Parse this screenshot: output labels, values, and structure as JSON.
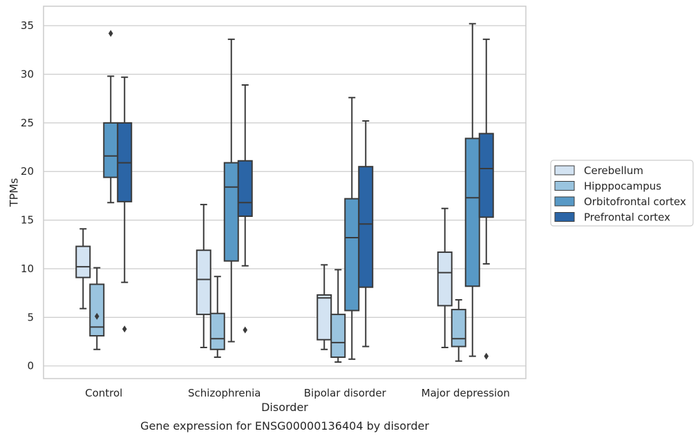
{
  "chart_data": {
    "type": "boxplot",
    "xlabel": "Disorder",
    "ylabel": "TPMs",
    "caption": "Gene expression for ENSG00000136404 by disorder",
    "ylim": [
      -1.3,
      37
    ],
    "yticks": [
      0,
      5,
      10,
      15,
      20,
      25,
      30,
      35
    ],
    "grid": true,
    "legend_position": "right",
    "categories": [
      "Control",
      "Schizophrenia",
      "Bipolar disorder",
      "Major depression"
    ],
    "series": [
      {
        "name": "Cerebellum",
        "color": "#d3e3f2",
        "boxes": [
          {
            "whisker_low": 5.9,
            "q1": 9.1,
            "median": 10.2,
            "q3": 12.3,
            "whisker_high": 14.1,
            "outliers": []
          },
          {
            "whisker_low": 1.9,
            "q1": 5.3,
            "median": 8.9,
            "q3": 11.9,
            "whisker_high": 16.6,
            "outliers": []
          },
          {
            "whisker_low": 1.7,
            "q1": 2.7,
            "median": 7.0,
            "q3": 7.3,
            "whisker_high": 10.4,
            "outliers": []
          },
          {
            "whisker_low": 1.9,
            "q1": 6.2,
            "median": 9.6,
            "q3": 11.7,
            "whisker_high": 16.2,
            "outliers": []
          }
        ]
      },
      {
        "name": "Hipppocampus",
        "color": "#9ac4df",
        "boxes": [
          {
            "whisker_low": 1.7,
            "q1": 3.1,
            "median": 4.0,
            "q3": 8.4,
            "whisker_high": 10.1,
            "outliers": [
              5.1
            ]
          },
          {
            "whisker_low": 0.9,
            "q1": 1.7,
            "median": 2.8,
            "q3": 5.4,
            "whisker_high": 9.2,
            "outliers": []
          },
          {
            "whisker_low": 0.4,
            "q1": 0.9,
            "median": 2.4,
            "q3": 5.3,
            "whisker_high": 9.9,
            "outliers": []
          },
          {
            "whisker_low": 0.5,
            "q1": 2.0,
            "median": 2.8,
            "q3": 5.8,
            "whisker_high": 6.8,
            "outliers": []
          }
        ]
      },
      {
        "name": "Orbitofrontal cortex",
        "color": "#5899c6",
        "boxes": [
          {
            "whisker_low": 16.8,
            "q1": 19.4,
            "median": 21.6,
            "q3": 25.0,
            "whisker_high": 29.8,
            "outliers": [
              34.2
            ]
          },
          {
            "whisker_low": 2.5,
            "q1": 10.8,
            "median": 18.4,
            "q3": 20.9,
            "whisker_high": 33.6,
            "outliers": []
          },
          {
            "whisker_low": 0.7,
            "q1": 5.7,
            "median": 13.2,
            "q3": 17.2,
            "whisker_high": 27.6,
            "outliers": []
          },
          {
            "whisker_low": 1.0,
            "q1": 8.2,
            "median": 17.3,
            "q3": 23.4,
            "whisker_high": 35.2,
            "outliers": []
          }
        ]
      },
      {
        "name": "Prefrontal cortex",
        "color": "#2b65a6",
        "boxes": [
          {
            "whisker_low": 8.6,
            "q1": 16.9,
            "median": 20.9,
            "q3": 25.0,
            "whisker_high": 29.7,
            "outliers": [
              3.8
            ]
          },
          {
            "whisker_low": 10.3,
            "q1": 15.4,
            "median": 16.8,
            "q3": 21.1,
            "whisker_high": 28.9,
            "outliers": [
              3.7
            ]
          },
          {
            "whisker_low": 2.0,
            "q1": 8.1,
            "median": 14.6,
            "q3": 20.5,
            "whisker_high": 25.2,
            "outliers": []
          },
          {
            "whisker_low": 10.5,
            "q1": 15.3,
            "median": 20.3,
            "q3": 23.9,
            "whisker_high": 33.6,
            "outliers": [
              1.0
            ]
          }
        ]
      }
    ]
  },
  "style": {
    "edge_color": "#3a3a3a",
    "grid_color": "#cccccc",
    "frame_color": "#cccccc"
  }
}
